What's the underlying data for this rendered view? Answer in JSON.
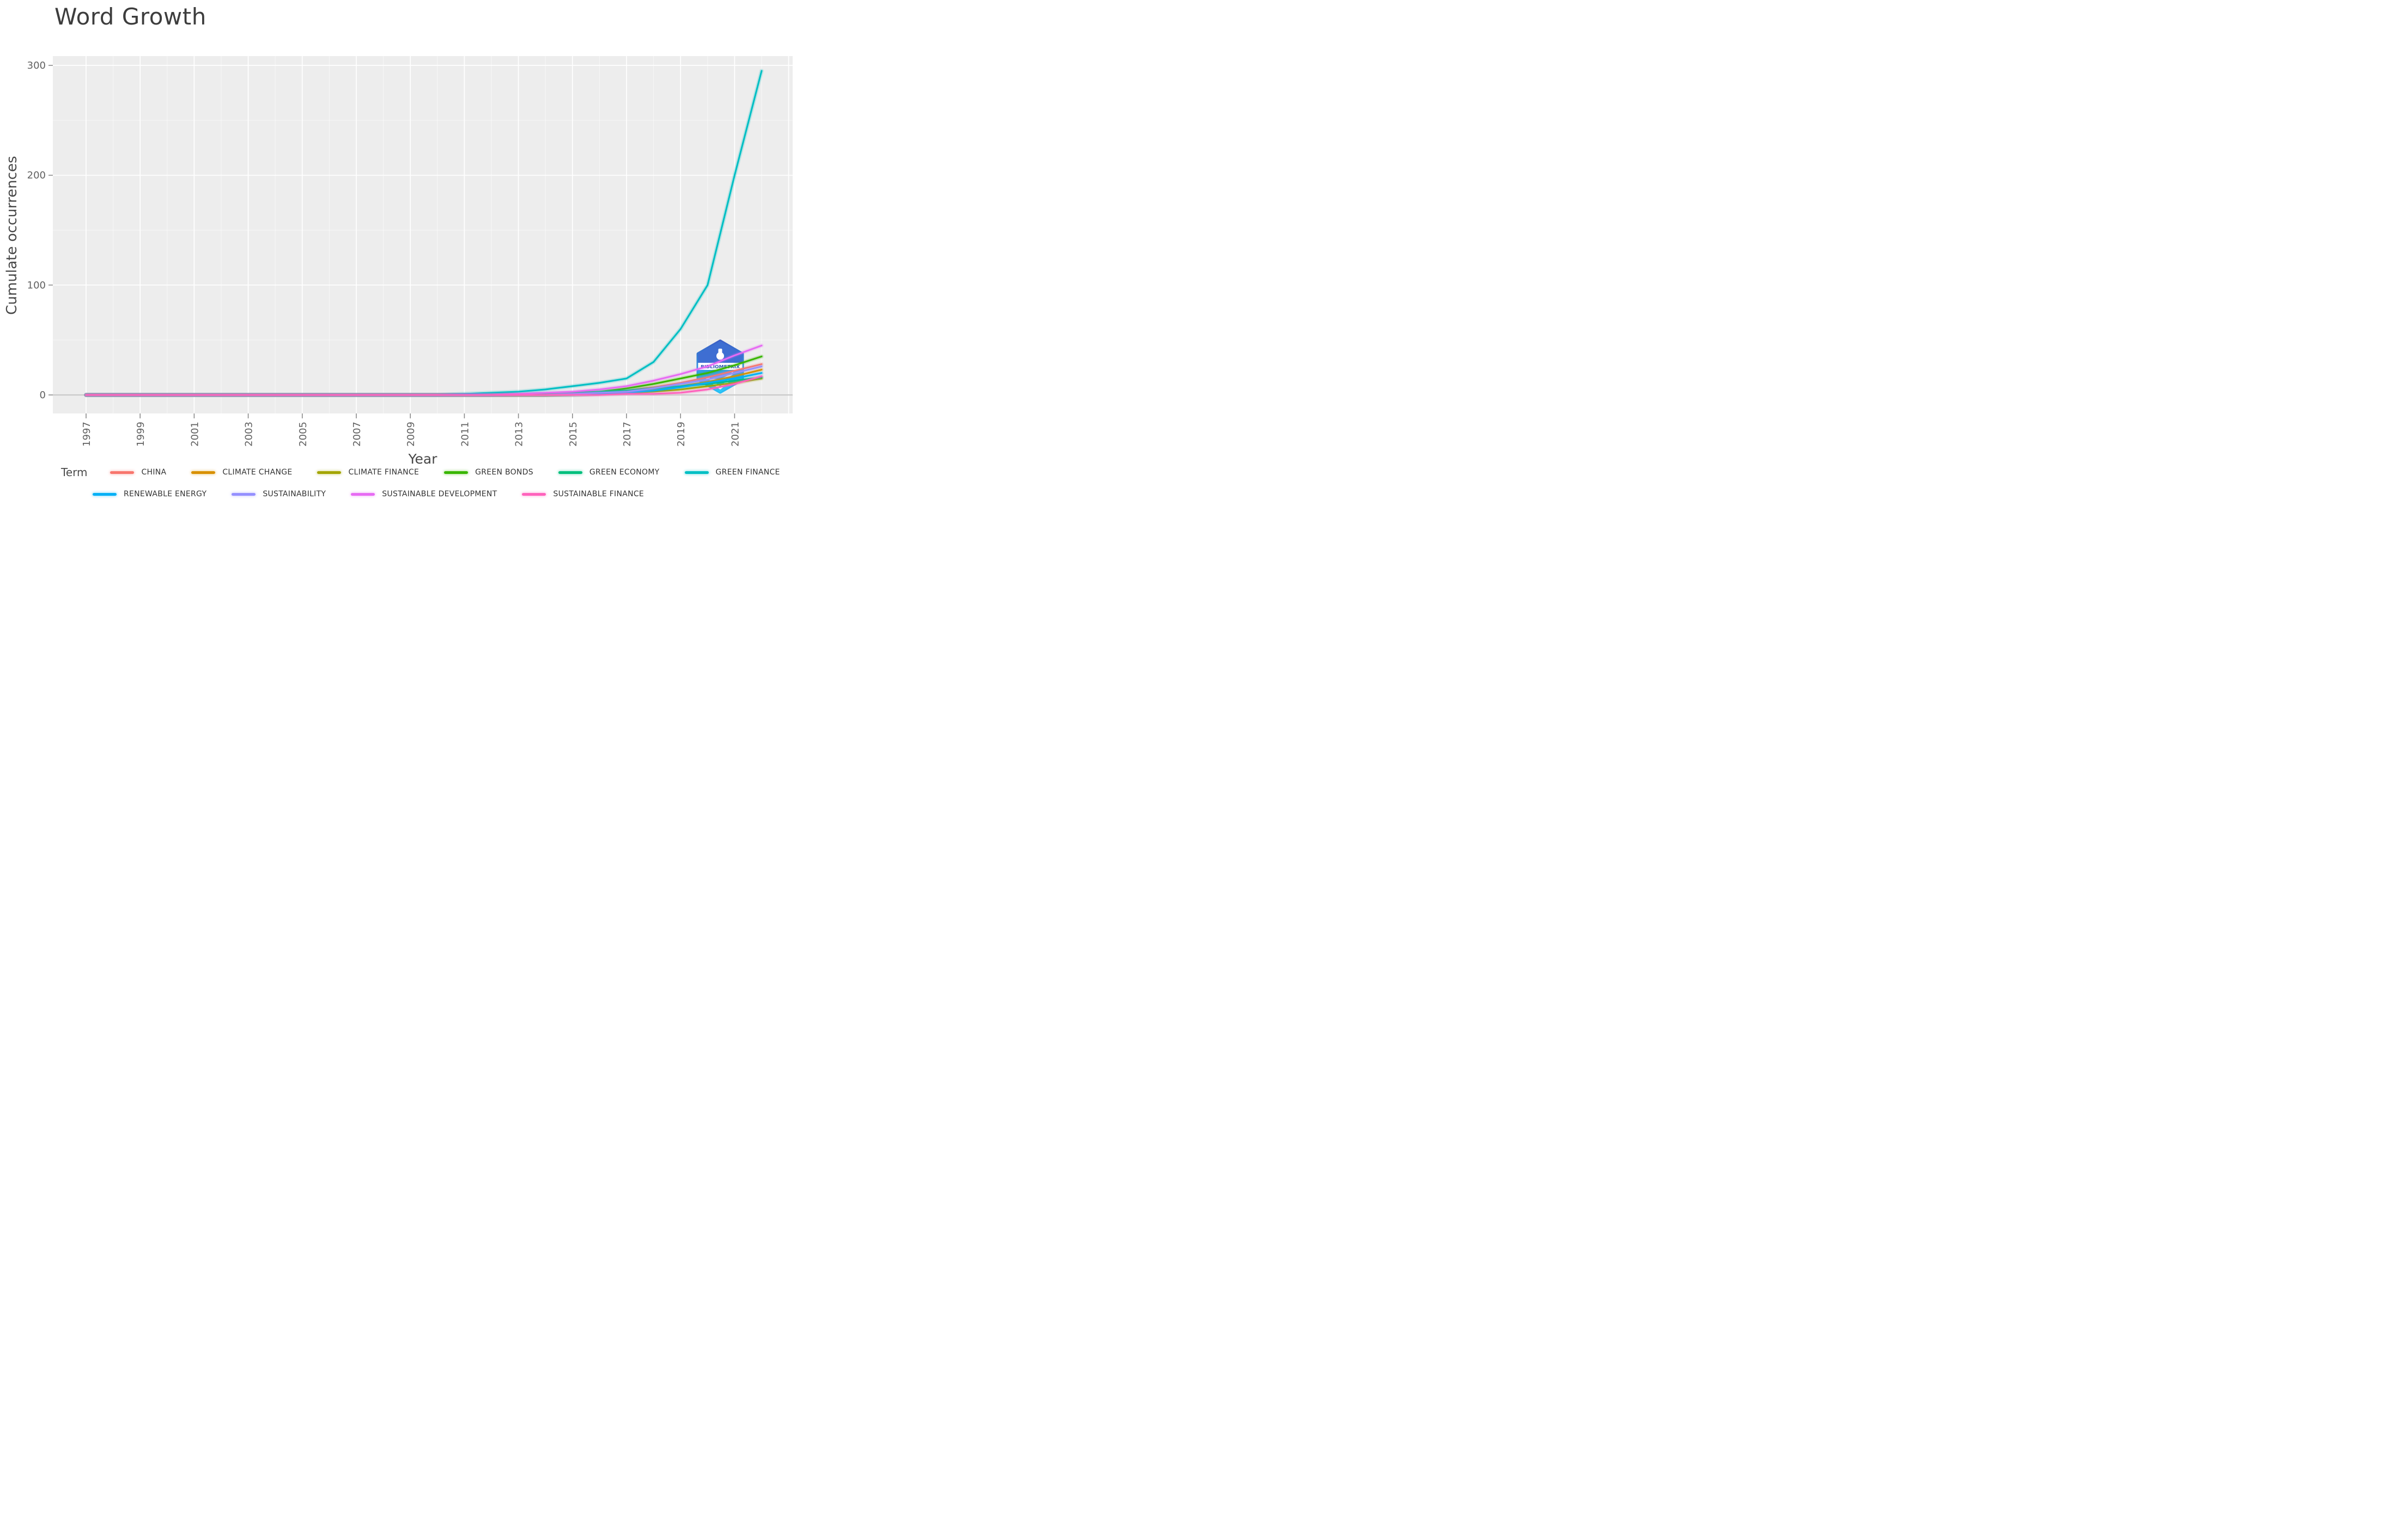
{
  "title": "Word Growth",
  "axes": {
    "y_label": "Cumulate occurrences",
    "x_label": "Year"
  },
  "legend": {
    "title": "Term",
    "row_split": [
      6,
      4
    ]
  },
  "watermark": {
    "text": "BIBLIOMETRIX",
    "roof_color": "#3E6ED2",
    "text_color": "#2B55B8",
    "stroke_top_color": "#3C5FC6",
    "stroke_bottom_color": "#27BDF4",
    "bottom_top_color": "#2F9FE6",
    "bottom_bottom_color": "#2CC9FA"
  },
  "chart_data": {
    "type": "line",
    "title": "Word Growth",
    "xlabel": "Year",
    "ylabel": "Cumulate occurrences",
    "x": [
      1997,
      1998,
      1999,
      2000,
      2001,
      2002,
      2003,
      2004,
      2005,
      2006,
      2007,
      2008,
      2009,
      2010,
      2011,
      2012,
      2013,
      2014,
      2015,
      2016,
      2017,
      2018,
      2019,
      2020,
      2021,
      2022
    ],
    "x_tick_labels": [
      1997,
      1999,
      2001,
      2003,
      2005,
      2007,
      2009,
      2011,
      2013,
      2015,
      2017,
      2019,
      2021
    ],
    "x_major_gridlines": [
      1997,
      1999,
      2001,
      2003,
      2005,
      2007,
      2009,
      2011,
      2013,
      2015,
      2017,
      2019,
      2021,
      2023
    ],
    "y_ticks": [
      0,
      100,
      200,
      300
    ],
    "y_minor_gridlines": [
      50,
      150,
      250
    ],
    "ylim": [
      0,
      300
    ],
    "xlim": [
      1995.8,
      2023.2
    ],
    "grid": "on",
    "legend_position": "bottom",
    "background_color": "#EDEDED",
    "gridline_color": "#FFFFFF",
    "zero_line_color": "#C9C9C9",
    "tick_color": "#8A8A8A",
    "tick_label_color": "#5F5F5F",
    "series": [
      {
        "name": "CHINA",
        "color": "#F8766D",
        "values": [
          0,
          0,
          0,
          0,
          0,
          0,
          0,
          0,
          0,
          0,
          0,
          0,
          0,
          0,
          0,
          0,
          0,
          0,
          1,
          2,
          4,
          7,
          11,
          16,
          22,
          28
        ]
      },
      {
        "name": "CLIMATE CHANGE",
        "color": "#D89000",
        "values": [
          0,
          0,
          0,
          0,
          0,
          0,
          0,
          0,
          0,
          0,
          0,
          0,
          0,
          0,
          0,
          0,
          0,
          0,
          1,
          2,
          3,
          5,
          8,
          12,
          17,
          23
        ]
      },
      {
        "name": "CLIMATE FINANCE",
        "color": "#A3A500",
        "values": [
          0,
          0,
          0,
          0,
          0,
          0,
          0,
          0,
          0,
          0,
          0,
          0,
          0,
          0,
          0,
          0,
          0,
          0,
          0,
          1,
          2,
          3,
          5,
          8,
          11,
          15
        ]
      },
      {
        "name": "GREEN BONDS",
        "color": "#39B600",
        "values": [
          0,
          0,
          0,
          0,
          0,
          0,
          0,
          0,
          0,
          0,
          0,
          0,
          0,
          0,
          0,
          0,
          0,
          0,
          1,
          3,
          6,
          10,
          15,
          20,
          27,
          35
        ]
      },
      {
        "name": "GREEN ECONOMY",
        "color": "#00BF7D",
        "values": [
          0,
          0,
          0,
          0,
          0,
          0,
          0,
          0,
          0,
          0,
          0,
          0,
          0,
          0,
          0,
          0,
          1,
          1,
          2,
          3,
          4,
          6,
          8,
          10,
          13,
          16
        ]
      },
      {
        "name": "GREEN FINANCE",
        "color": "#00BFC4",
        "values": [
          0,
          0,
          0,
          0,
          0,
          0,
          0,
          0,
          0,
          0,
          0,
          0,
          0,
          0,
          1,
          2,
          3,
          5,
          8,
          11,
          15,
          30,
          60,
          100,
          200,
          295
        ]
      },
      {
        "name": "RENEWABLE ENERGY",
        "color": "#00B0F6",
        "values": [
          0,
          0,
          0,
          0,
          0,
          0,
          0,
          0,
          0,
          0,
          0,
          0,
          0,
          0,
          0,
          0,
          0,
          0,
          0,
          1,
          2,
          4,
          7,
          11,
          15,
          20
        ]
      },
      {
        "name": "SUSTAINABILITY",
        "color": "#9590FF",
        "values": [
          0,
          0,
          0,
          0,
          0,
          0,
          0,
          0,
          0,
          0,
          0,
          0,
          0,
          0,
          0,
          0,
          0,
          0,
          1,
          2,
          3,
          6,
          10,
          14,
          20,
          26
        ]
      },
      {
        "name": "SUSTAINABLE DEVELOPMENT",
        "color": "#E76BF3",
        "values": [
          0,
          0,
          0,
          0,
          0,
          0,
          0,
          0,
          0,
          0,
          0,
          0,
          0,
          0,
          0,
          0,
          1,
          2,
          3,
          5,
          8,
          13,
          19,
          26,
          36,
          45
        ]
      },
      {
        "name": "SUSTAINABLE FINANCE",
        "color": "#FF62BC",
        "values": [
          0,
          0,
          0,
          0,
          0,
          0,
          0,
          0,
          0,
          0,
          0,
          0,
          0,
          0,
          0,
          0,
          0,
          0,
          0,
          0,
          1,
          1,
          2,
          5,
          10,
          17
        ]
      }
    ]
  }
}
